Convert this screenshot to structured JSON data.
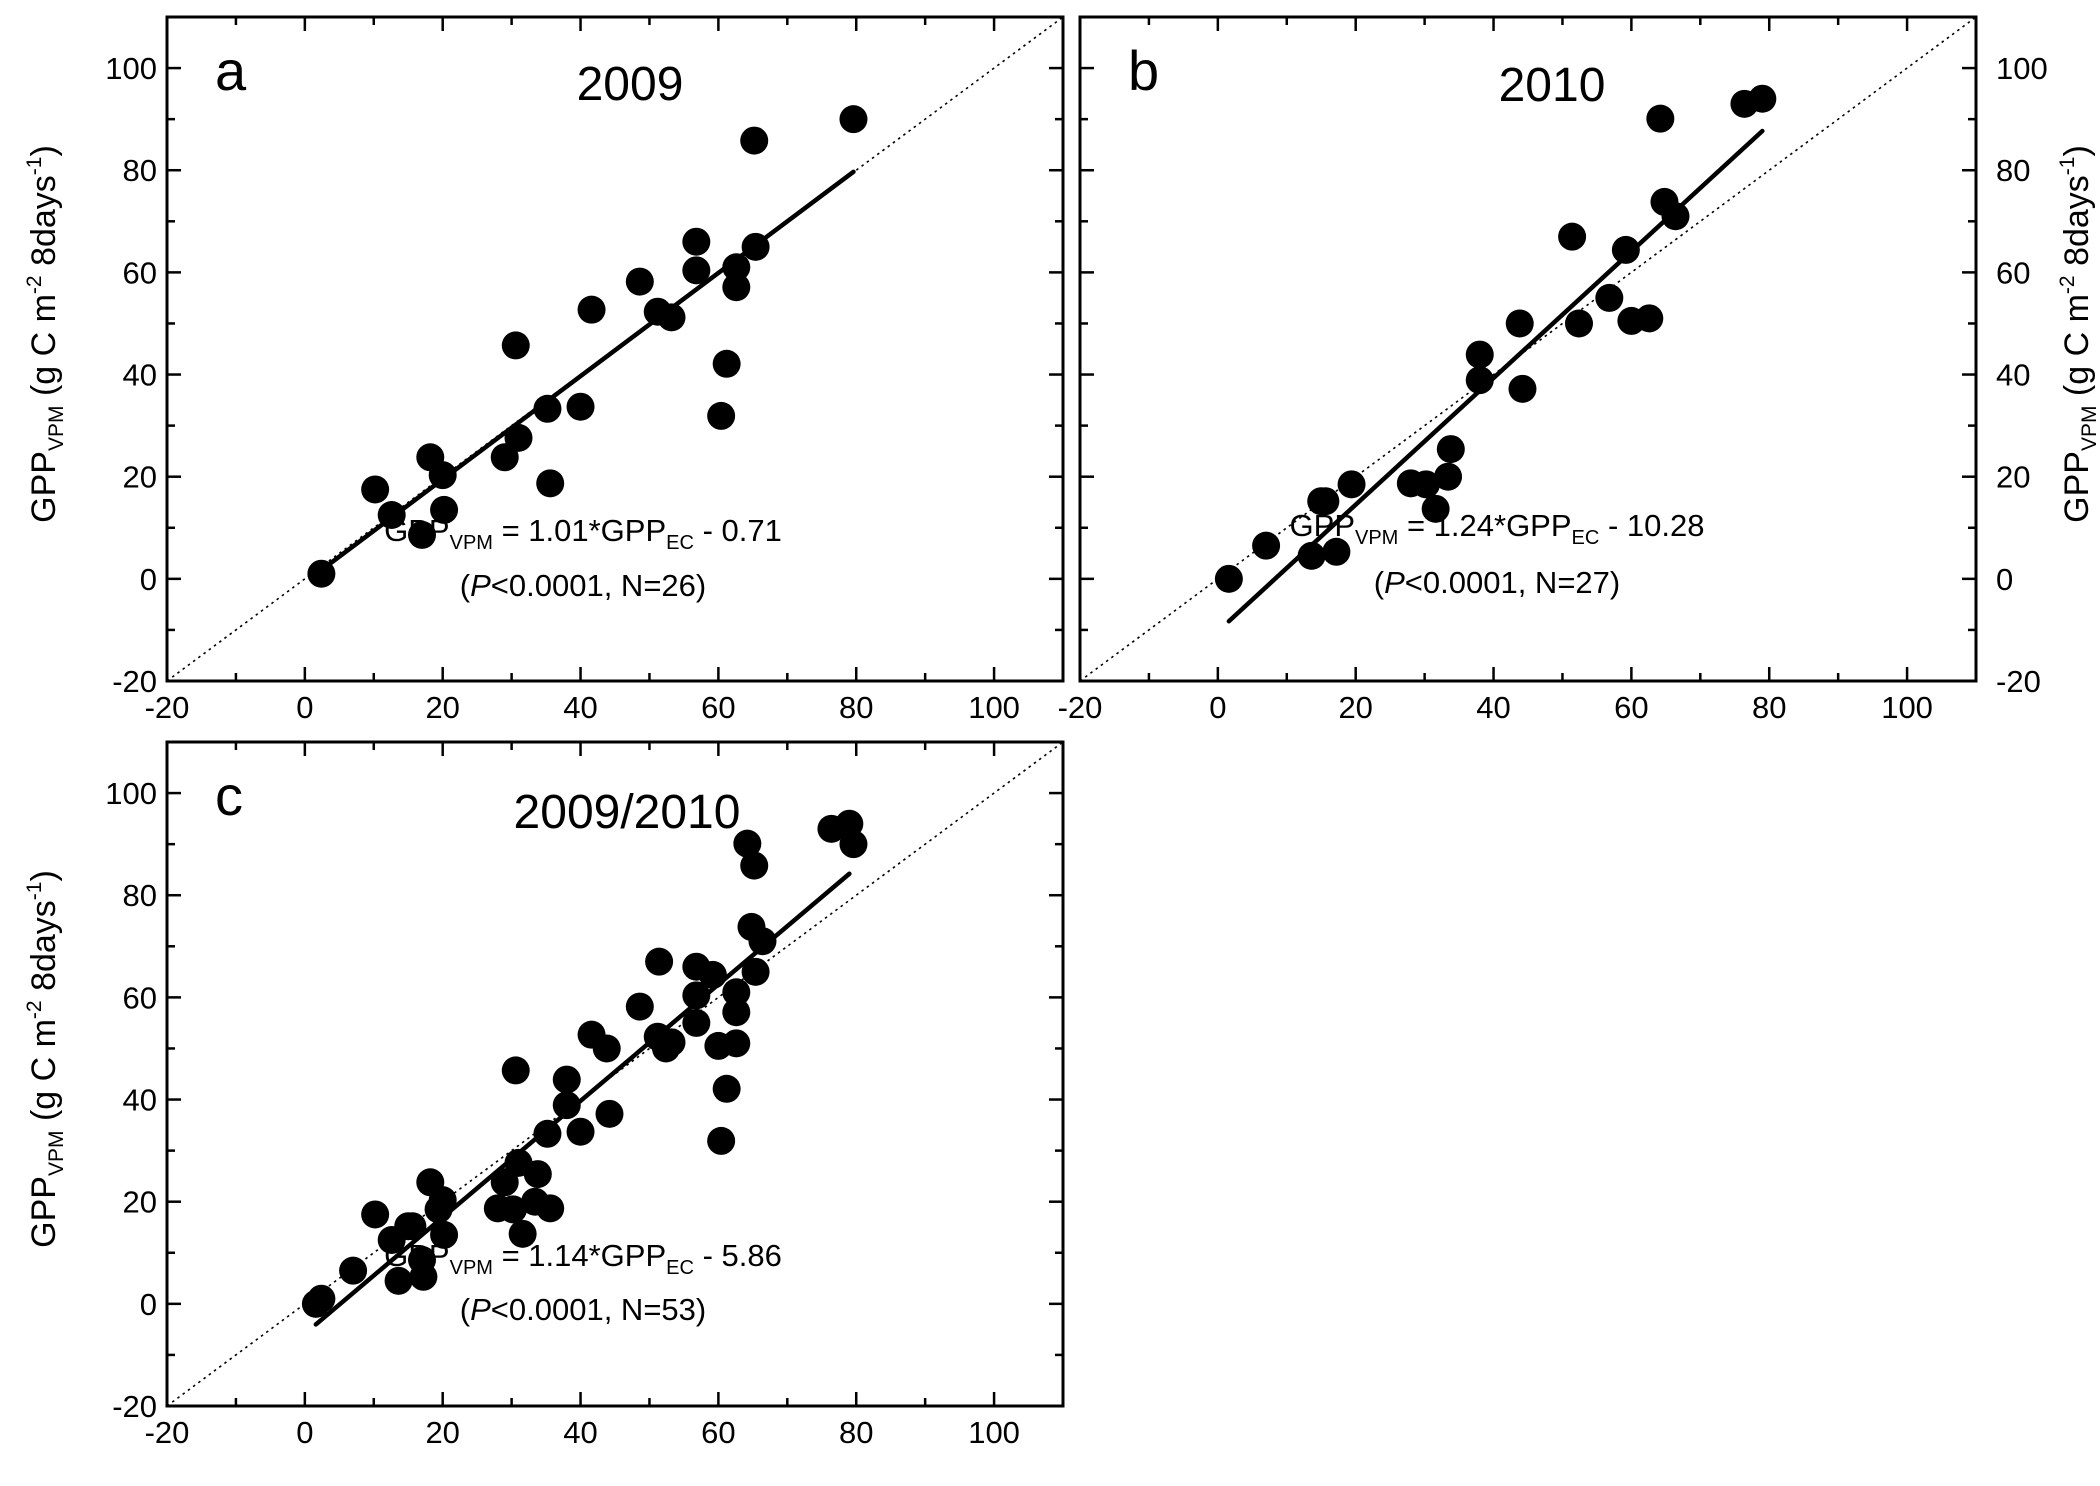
{
  "chart_data": [
    {
      "type": "scatter",
      "panel_label": "a",
      "title": "2009",
      "xlim": [
        -20,
        110
      ],
      "ylim": [
        -20,
        110
      ],
      "xticks": [
        -20,
        0,
        20,
        40,
        60,
        80,
        100
      ],
      "yticks": [
        -20,
        0,
        20,
        40,
        60,
        80,
        100
      ],
      "y_axis_side": "left",
      "ylabel": {
        "main": "GPP",
        "sub": "VPM",
        "unit_prefix": "(g C m",
        "exp1": "-2",
        "unit_mid": " 8days",
        "exp2": "-1",
        "unit_suffix": ")"
      },
      "regression": {
        "slope": 1.01,
        "intercept": -0.71,
        "x_range": [
          2.4,
          79.6
        ]
      },
      "one_to_one_line": true,
      "equation": {
        "lhs": "GPP",
        "lhs_sub": "VPM",
        "mid": " = 1.01*GPP",
        "mid_sub": "EC",
        "rhs": " - 0.71"
      },
      "stats": {
        "open": "(",
        "p_symbol": "P",
        "rest": "<0.0001, N=26)"
      },
      "points": [
        [
          2.4,
          1
        ],
        [
          10.2,
          17.5
        ],
        [
          12.6,
          12.5
        ],
        [
          17.0,
          8.6
        ],
        [
          18.2,
          23.8
        ],
        [
          20.0,
          20.3
        ],
        [
          20.2,
          13.5
        ],
        [
          29.0,
          23.8
        ],
        [
          30.6,
          45.7
        ],
        [
          31.0,
          27.6
        ],
        [
          35.2,
          33.3
        ],
        [
          35.6,
          18.7
        ],
        [
          40.0,
          33.7
        ],
        [
          41.6,
          52.7
        ],
        [
          48.6,
          58.2
        ],
        [
          51.2,
          52.3
        ],
        [
          53.2,
          51.2
        ],
        [
          56.8,
          66.0
        ],
        [
          56.8,
          60.4
        ],
        [
          60.4,
          31.9
        ],
        [
          61.2,
          42.1
        ],
        [
          62.6,
          61.0
        ],
        [
          62.6,
          57.1
        ],
        [
          65.2,
          85.8
        ],
        [
          65.4,
          65.0
        ],
        [
          79.6,
          90.0
        ]
      ]
    },
    {
      "type": "scatter",
      "panel_label": "b",
      "title": "2010",
      "xlim": [
        -20,
        110
      ],
      "ylim": [
        -20,
        110
      ],
      "xticks": [
        -20,
        0,
        20,
        40,
        60,
        80,
        100
      ],
      "yticks": [
        -20,
        0,
        20,
        40,
        60,
        80,
        100
      ],
      "y_axis_side": "right",
      "ylabel": {
        "main": "GPP",
        "sub": "VPM",
        "unit_prefix": "(g C m",
        "exp1": "-2",
        "unit_mid": " 8days",
        "exp2": "-1",
        "unit_suffix": ")"
      },
      "regression": {
        "slope": 1.24,
        "intercept": -10.28,
        "x_range": [
          1.6,
          79
        ]
      },
      "one_to_one_line": true,
      "equation": {
        "lhs": "GPP",
        "lhs_sub": "VPM",
        "mid": " = 1.24*GPP",
        "mid_sub": "EC",
        "rhs": " - 10.28"
      },
      "stats": {
        "open": "(",
        "p_symbol": "P",
        "rest": "<0.0001, N=27)"
      },
      "points": [
        [
          1.6,
          0
        ],
        [
          7.0,
          6.5
        ],
        [
          13.6,
          4.5
        ],
        [
          15.0,
          15.2
        ],
        [
          15.6,
          15.2
        ],
        [
          17.2,
          5.3
        ],
        [
          19.4,
          18.5
        ],
        [
          28.0,
          18.7
        ],
        [
          30.2,
          18.5
        ],
        [
          31.6,
          13.7
        ],
        [
          33.4,
          20.0
        ],
        [
          33.8,
          25.4
        ],
        [
          38.0,
          43.9
        ],
        [
          38.0,
          38.9
        ],
        [
          43.8,
          50.0
        ],
        [
          44.2,
          37.2
        ],
        [
          51.4,
          67.0
        ],
        [
          52.4,
          50.0
        ],
        [
          56.8,
          55.0
        ],
        [
          59.2,
          64.4
        ],
        [
          60.0,
          50.5
        ],
        [
          62.6,
          51.0
        ],
        [
          64.2,
          90.1
        ],
        [
          64.8,
          73.8
        ],
        [
          66.4,
          71.0
        ],
        [
          76.4,
          93.0
        ],
        [
          79.0,
          94.0
        ]
      ]
    },
    {
      "type": "scatter",
      "panel_label": "c",
      "title": "2009/2010",
      "xlim": [
        -20,
        110
      ],
      "ylim": [
        -20,
        110
      ],
      "xticks": [
        -20,
        0,
        20,
        40,
        60,
        80,
        100
      ],
      "yticks": [
        -20,
        0,
        20,
        40,
        60,
        80,
        100
      ],
      "y_axis_side": "left",
      "ylabel": {
        "main": "GPP",
        "sub": "VPM",
        "unit_prefix": "(g C m",
        "exp1": "-2",
        "unit_mid": " 8days",
        "exp2": "-1",
        "unit_suffix": ")"
      },
      "regression": {
        "slope": 1.14,
        "intercept": -5.86,
        "x_range": [
          1.6,
          79
        ]
      },
      "one_to_one_line": true,
      "equation": {
        "lhs": "GPP",
        "lhs_sub": "VPM",
        "mid": " = 1.14*GPP",
        "mid_sub": "EC",
        "rhs": " - 5.86"
      },
      "stats": {
        "open": "(",
        "p_symbol": "P",
        "rest": "<0.0001, N=53)"
      },
      "points": [
        [
          1.6,
          0
        ],
        [
          2.4,
          1
        ],
        [
          7.0,
          6.5
        ],
        [
          10.2,
          17.5
        ],
        [
          12.6,
          12.5
        ],
        [
          13.6,
          4.5
        ],
        [
          15.0,
          15.2
        ],
        [
          15.6,
          15.2
        ],
        [
          17.0,
          8.6
        ],
        [
          17.2,
          5.3
        ],
        [
          18.2,
          23.8
        ],
        [
          19.4,
          18.5
        ],
        [
          20.0,
          20.3
        ],
        [
          20.2,
          13.5
        ],
        [
          28.0,
          18.7
        ],
        [
          29.0,
          23.8
        ],
        [
          30.2,
          18.5
        ],
        [
          30.6,
          45.7
        ],
        [
          31.0,
          27.6
        ],
        [
          31.6,
          13.7
        ],
        [
          33.4,
          20.0
        ],
        [
          33.8,
          25.4
        ],
        [
          35.2,
          33.3
        ],
        [
          35.6,
          18.7
        ],
        [
          38.0,
          43.9
        ],
        [
          38.0,
          38.9
        ],
        [
          40.0,
          33.7
        ],
        [
          41.6,
          52.7
        ],
        [
          43.8,
          50.0
        ],
        [
          44.2,
          37.2
        ],
        [
          48.6,
          58.2
        ],
        [
          51.2,
          52.3
        ],
        [
          51.4,
          67.0
        ],
        [
          52.4,
          50.0
        ],
        [
          53.2,
          51.2
        ],
        [
          56.8,
          66.0
        ],
        [
          56.8,
          60.4
        ],
        [
          56.8,
          55.0
        ],
        [
          59.2,
          64.4
        ],
        [
          60.0,
          50.5
        ],
        [
          60.4,
          31.9
        ],
        [
          61.2,
          42.1
        ],
        [
          62.6,
          61.0
        ],
        [
          62.6,
          57.1
        ],
        [
          62.6,
          51.0
        ],
        [
          64.2,
          90.1
        ],
        [
          64.8,
          73.8
        ],
        [
          65.2,
          85.8
        ],
        [
          65.4,
          65.0
        ],
        [
          66.4,
          71.0
        ],
        [
          76.4,
          93.0
        ],
        [
          79.0,
          94.0
        ],
        [
          79.6,
          90.0
        ]
      ]
    }
  ]
}
